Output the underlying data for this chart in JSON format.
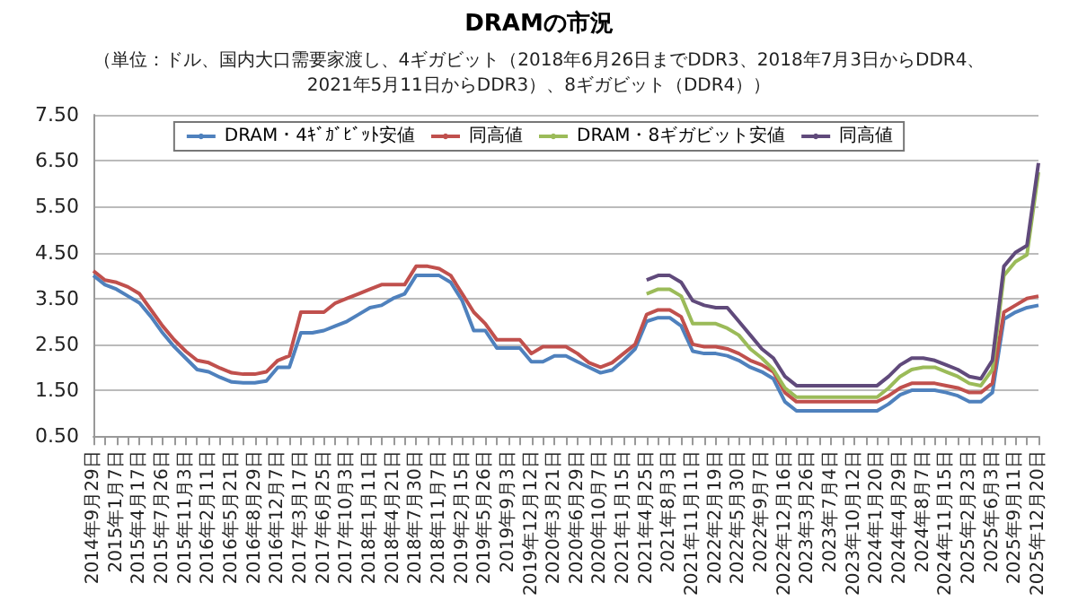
{
  "chart_data": {
    "type": "line",
    "title": "DRAMの市況",
    "subtitle": "（単位：ドル、国内大口需要家渡し、4ギガビット（2018年6月26日までDDR3、2018年7月3日からDDR4、\n2021年5月11日からDDR3）、8ギガビット（DDR4））",
    "categories": [
      "2014年9月29日",
      null,
      "2015年1月7日",
      null,
      "2015年4月17日",
      null,
      "2015年7月26日",
      null,
      "2015年11月3日",
      null,
      "2016年2月11日",
      null,
      "2016年5月21日",
      null,
      "2016年8月29日",
      null,
      "2016年12月7日",
      null,
      "2017年3月17日",
      null,
      "2017年6月25日",
      null,
      "2017年10月3日",
      null,
      "2018年1月11日",
      null,
      "2018年4月21日",
      null,
      "2018年7月30日",
      null,
      "2018年11月7日",
      null,
      "2019年2月15日",
      null,
      "2019年5月26日",
      null,
      "2019年9月3日",
      null,
      "2019年12月12日",
      null,
      "2020年3月21日",
      null,
      "2020年6月29日",
      null,
      "2020年10月7日",
      null,
      "2021年1月15日",
      null,
      "2021年4月25日",
      null,
      "2021年8月3日",
      null,
      "2021年11月11日",
      null,
      "2022年2月19日",
      null,
      "2022年5月30日",
      null,
      "2022年9月7日",
      null,
      "2022年12月16日",
      null,
      "2023年3月26日",
      null,
      "2023年7月4日",
      null,
      "2023年10月12日",
      null,
      "2024年1月20日",
      null,
      "2024年4月29日",
      null,
      "2024年8月7日",
      null,
      "2024年11月15日",
      null,
      "2025年2月23日",
      null,
      "2025年6月3日",
      null,
      "2025年9月11日",
      null,
      "2025年12月20日"
    ],
    "series": [
      {
        "name": "DRAM・4ｷﾞｶﾞﾋﾞｯﾄ安値",
        "color": "#4f81bd",
        "values": [
          4.0,
          3.8,
          3.7,
          3.55,
          3.4,
          3.1,
          2.75,
          2.45,
          2.2,
          1.95,
          1.9,
          1.78,
          1.68,
          1.66,
          1.66,
          1.7,
          2.0,
          2.0,
          2.75,
          2.75,
          2.8,
          2.9,
          3.0,
          3.15,
          3.3,
          3.35,
          3.5,
          3.6,
          4.0,
          4.0,
          4.0,
          3.85,
          3.45,
          2.8,
          2.8,
          2.42,
          2.42,
          2.42,
          2.12,
          2.12,
          2.25,
          2.25,
          2.12,
          2.0,
          1.88,
          1.94,
          2.15,
          2.4,
          3.0,
          3.08,
          3.08,
          2.9,
          2.35,
          2.3,
          2.3,
          2.25,
          2.15,
          2.0,
          1.9,
          1.75,
          1.25,
          1.05,
          1.05,
          1.05,
          1.05,
          1.05,
          1.05,
          1.05,
          1.05,
          1.2,
          1.4,
          1.5,
          1.5,
          1.5,
          1.45,
          1.38,
          1.25,
          1.25,
          1.45,
          3.05,
          3.2,
          3.3,
          3.35
        ]
      },
      {
        "name": "同高値",
        "color": "#c0504d",
        "values": [
          4.1,
          3.9,
          3.85,
          3.75,
          3.6,
          3.25,
          2.9,
          2.6,
          2.35,
          2.15,
          2.1,
          1.98,
          1.88,
          1.85,
          1.85,
          1.9,
          2.15,
          2.25,
          3.2,
          3.2,
          3.2,
          3.4,
          3.5,
          3.6,
          3.7,
          3.8,
          3.8,
          3.8,
          4.2,
          4.2,
          4.15,
          4.0,
          3.6,
          3.2,
          2.95,
          2.6,
          2.6,
          2.6,
          2.3,
          2.45,
          2.45,
          2.45,
          2.3,
          2.1,
          2.0,
          2.1,
          2.3,
          2.5,
          3.15,
          3.25,
          3.25,
          3.1,
          2.5,
          2.45,
          2.45,
          2.4,
          2.3,
          2.15,
          2.05,
          1.9,
          1.45,
          1.25,
          1.25,
          1.25,
          1.25,
          1.25,
          1.25,
          1.25,
          1.25,
          1.38,
          1.55,
          1.65,
          1.65,
          1.65,
          1.6,
          1.55,
          1.45,
          1.45,
          1.65,
          3.2,
          3.35,
          3.5,
          3.55
        ]
      },
      {
        "name": "DRAM・8ギガビット安値",
        "color": "#9bbb59",
        "values": [
          null,
          null,
          null,
          null,
          null,
          null,
          null,
          null,
          null,
          null,
          null,
          null,
          null,
          null,
          null,
          null,
          null,
          null,
          null,
          null,
          null,
          null,
          null,
          null,
          null,
          null,
          null,
          null,
          null,
          null,
          null,
          null,
          null,
          null,
          null,
          null,
          null,
          null,
          null,
          null,
          null,
          null,
          null,
          null,
          null,
          null,
          null,
          null,
          3.6,
          3.7,
          3.7,
          3.55,
          2.95,
          2.95,
          2.95,
          2.85,
          2.7,
          2.4,
          2.2,
          1.95,
          1.55,
          1.35,
          1.35,
          1.35,
          1.35,
          1.35,
          1.35,
          1.35,
          1.35,
          1.55,
          1.8,
          1.95,
          2.0,
          2.0,
          1.9,
          1.8,
          1.65,
          1.6,
          1.95,
          4.0,
          4.3,
          4.45,
          6.25
        ]
      },
      {
        "name": "同高値",
        "color": "#604a7b",
        "values": [
          null,
          null,
          null,
          null,
          null,
          null,
          null,
          null,
          null,
          null,
          null,
          null,
          null,
          null,
          null,
          null,
          null,
          null,
          null,
          null,
          null,
          null,
          null,
          null,
          null,
          null,
          null,
          null,
          null,
          null,
          null,
          null,
          null,
          null,
          null,
          null,
          null,
          null,
          null,
          null,
          null,
          null,
          null,
          null,
          null,
          null,
          null,
          null,
          3.9,
          4.0,
          4.0,
          3.85,
          3.45,
          3.35,
          3.3,
          3.3,
          3.0,
          2.7,
          2.4,
          2.2,
          1.8,
          1.6,
          1.6,
          1.6,
          1.6,
          1.6,
          1.6,
          1.6,
          1.6,
          1.8,
          2.05,
          2.2,
          2.2,
          2.15,
          2.05,
          1.95,
          1.8,
          1.75,
          2.15,
          4.2,
          4.5,
          4.65,
          6.45
        ]
      }
    ],
    "ylim": [
      0.5,
      7.5
    ],
    "yticks": [
      {
        "value": 0.5,
        "label": "0.50"
      },
      {
        "value": 1.5,
        "label": "1.50"
      },
      {
        "value": 2.5,
        "label": "2.50"
      },
      {
        "value": 3.5,
        "label": "3.50"
      },
      {
        "value": 4.5,
        "label": "4.50"
      },
      {
        "value": 5.5,
        "label": "5.50"
      },
      {
        "value": 6.5,
        "label": "6.50"
      },
      {
        "value": 7.5,
        "label": "7.50"
      }
    ],
    "grid": "y",
    "legend": "top"
  }
}
